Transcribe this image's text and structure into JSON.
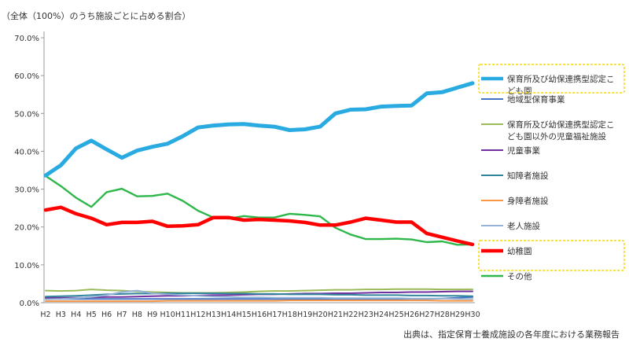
{
  "chart_data": {
    "type": "line",
    "subtitle": "（全体（100%）のうち施設ごとに占める割合）",
    "source_note": "出典は、指定保育士養成施設の各年度における業務報告",
    "x": [
      "H2",
      "H3",
      "H4",
      "H5",
      "H6",
      "H7",
      "H8",
      "H9",
      "H10",
      "H11",
      "H12",
      "H13",
      "H14",
      "H15",
      "H16",
      "H17",
      "H18",
      "H19",
      "H20",
      "H21",
      "H22",
      "H23",
      "H24",
      "H25",
      "H26",
      "H27",
      "H28",
      "H29",
      "H30"
    ],
    "y_ticks": [
      "0.0%",
      "10.0%",
      "20.0%",
      "30.0%",
      "40.0%",
      "50.0%",
      "60.0%",
      "70.0%"
    ],
    "ylim": [
      0,
      70
    ],
    "grid": false,
    "legend_position": "right",
    "series": [
      {
        "name": "保育所及び幼保連携型認定こども園",
        "color": "#29abe2",
        "highlight": true,
        "values": [
          33.6,
          36.3,
          40.8,
          42.8,
          40.5,
          38.3,
          40.2,
          41.2,
          42.0,
          44.0,
          46.3,
          46.8,
          47.1,
          47.2,
          46.8,
          46.5,
          45.6,
          45.8,
          46.5,
          50.0,
          51.0,
          51.1,
          51.8,
          52.0,
          52.1,
          55.3,
          55.6,
          56.8,
          58.0
        ]
      },
      {
        "name": "地域型保育事業",
        "color": "#4472c4",
        "highlight": false,
        "values": [
          1.0,
          1.0,
          1.0,
          1.0,
          1.0,
          1.0,
          1.0,
          1.0,
          1.0,
          1.0,
          1.0,
          1.0,
          1.0,
          1.0,
          1.0,
          1.0,
          1.0,
          1.0,
          1.0,
          1.0,
          1.0,
          1.0,
          1.0,
          1.0,
          1.0,
          1.0,
          1.1,
          1.3,
          1.5
        ]
      },
      {
        "name": "保育所及び幼保連携型認定こども園以外の児童福祉施設",
        "color": "#9bbb59",
        "highlight": false,
        "values": [
          3.2,
          3.1,
          3.2,
          3.5,
          3.3,
          3.2,
          3.0,
          2.8,
          2.7,
          2.6,
          2.6,
          2.6,
          2.7,
          2.8,
          3.0,
          3.1,
          3.1,
          3.2,
          3.3,
          3.4,
          3.4,
          3.5,
          3.5,
          3.6,
          3.6,
          3.6,
          3.5,
          3.5,
          3.5
        ]
      },
      {
        "name": "児童事業",
        "color": "#7030a0",
        "highlight": false,
        "values": [
          1.3,
          1.3,
          1.3,
          1.4,
          1.5,
          1.5,
          1.6,
          1.7,
          1.8,
          1.8,
          1.9,
          2.0,
          2.0,
          2.1,
          2.2,
          2.2,
          2.3,
          2.4,
          2.4,
          2.5,
          2.5,
          2.6,
          2.7,
          2.7,
          2.8,
          2.8,
          2.9,
          3.0,
          3.0
        ]
      },
      {
        "name": "知障者施設",
        "color": "#31859c",
        "highlight": false,
        "values": [
          1.6,
          1.7,
          1.8,
          2.0,
          2.2,
          2.3,
          2.4,
          2.4,
          2.5,
          2.5,
          2.5,
          2.5,
          2.4,
          2.4,
          2.3,
          2.3,
          2.2,
          2.2,
          2.2,
          2.1,
          2.1,
          2.0,
          2.0,
          2.0,
          1.9,
          1.9,
          1.8,
          1.8,
          1.7
        ]
      },
      {
        "name": "身障者施設",
        "color": "#f79646",
        "highlight": false,
        "values": [
          0.4,
          0.4,
          0.4,
          0.4,
          0.4,
          0.4,
          0.4,
          0.4,
          0.5,
          0.5,
          0.5,
          0.5,
          0.5,
          0.5,
          0.5,
          0.5,
          0.6,
          0.6,
          0.6,
          0.6,
          0.6,
          0.6,
          0.6,
          0.6,
          0.6,
          0.6,
          0.5,
          0.5,
          0.5
        ]
      },
      {
        "name": "老人施設",
        "color": "#95b3d7",
        "highlight": false,
        "values": [
          0.9,
          1.0,
          1.2,
          1.5,
          2.0,
          2.8,
          3.2,
          2.5,
          2.2,
          2.0,
          1.8,
          1.6,
          1.5,
          1.4,
          1.4,
          1.3,
          1.3,
          1.3,
          1.3,
          1.2,
          1.2,
          1.2,
          1.2,
          1.2,
          1.1,
          1.1,
          1.1,
          1.0,
          1.0
        ]
      },
      {
        "name": "幼稚園",
        "color": "#ff0000",
        "highlight": true,
        "values": [
          24.5,
          25.2,
          23.5,
          22.3,
          20.6,
          21.2,
          21.2,
          21.5,
          20.2,
          20.3,
          20.6,
          22.5,
          22.5,
          21.8,
          22.0,
          21.8,
          21.6,
          21.2,
          20.5,
          20.5,
          21.3,
          22.3,
          21.8,
          21.3,
          21.3,
          18.3,
          17.3,
          16.3,
          15.4
        ]
      },
      {
        "name": "その他",
        "color": "#2eb74a",
        "highlight": false,
        "values": [
          33.5,
          30.8,
          27.7,
          25.3,
          29.2,
          30.1,
          28.1,
          28.2,
          28.8,
          26.9,
          24.3,
          22.5,
          22.2,
          22.9,
          22.5,
          22.5,
          23.5,
          23.2,
          22.8,
          19.8,
          18.0,
          16.8,
          16.8,
          16.9,
          16.7,
          16.0,
          16.2,
          15.3,
          15.4
        ]
      }
    ]
  }
}
